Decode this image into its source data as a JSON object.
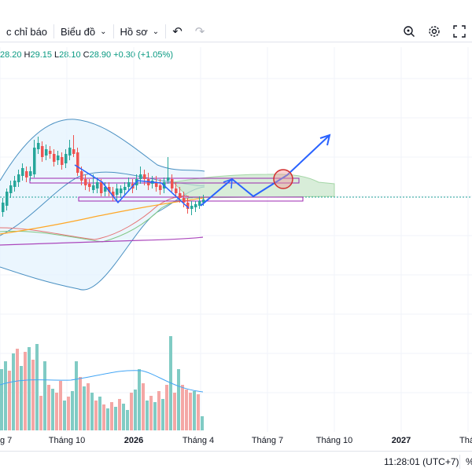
{
  "toolbar": {
    "indicators_label": "c chỉ báo",
    "chart_label": "Biểu đồ",
    "profile_label": "Hồ sơ",
    "undo_icon": "undo-icon",
    "redo_icon": "redo-icon",
    "zoom_icon": "zoom-settings-icon",
    "settings_icon": "gear-icon",
    "fullscreen_icon": "fullscreen-icon"
  },
  "ohlc": {
    "open": "28.20",
    "high_prefix": "H",
    "high": "29.15",
    "low_prefix": "L",
    "low": "28.10",
    "close_prefix": "C",
    "close": "28.90",
    "change": "+0.30 (+1.05%)"
  },
  "xaxis": {
    "labels": [
      "g 7",
      "Tháng 10",
      "2026",
      "Tháng 4",
      "Tháng 7",
      "Tháng 10",
      "2027",
      "Tháng"
    ]
  },
  "status": {
    "time": "11:28:01 (UTC+7)",
    "percent_symbol": "%"
  },
  "colors": {
    "up": "#26a69a",
    "down": "#ef5350",
    "projection": "#2962ff",
    "target_circle": "#d32f2f",
    "zone_line": "#9c27b0",
    "cloud": "#c8e6c9"
  }
}
